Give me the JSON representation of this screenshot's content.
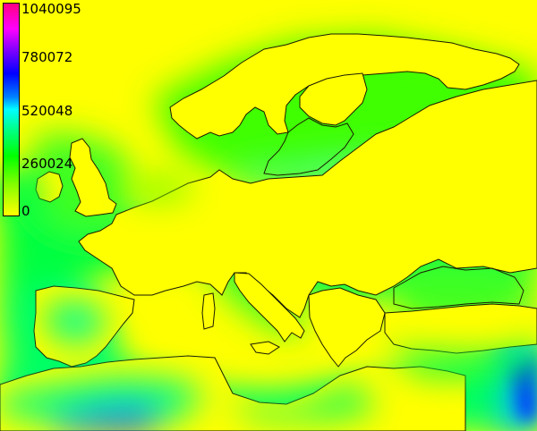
{
  "legend": {
    "labels": [
      "1040095",
      "780072",
      "520048",
      "260024",
      "0"
    ],
    "colors": {
      "max": "#ff0080",
      "high": "#8000ff",
      "mid_high": "#0000ff",
      "mid": "#00ffff",
      "mid_low": "#00ff00",
      "min": "#ffff00"
    }
  },
  "map": {
    "background_color": "#ffff00",
    "coastline_color": "#1a1a00"
  }
}
